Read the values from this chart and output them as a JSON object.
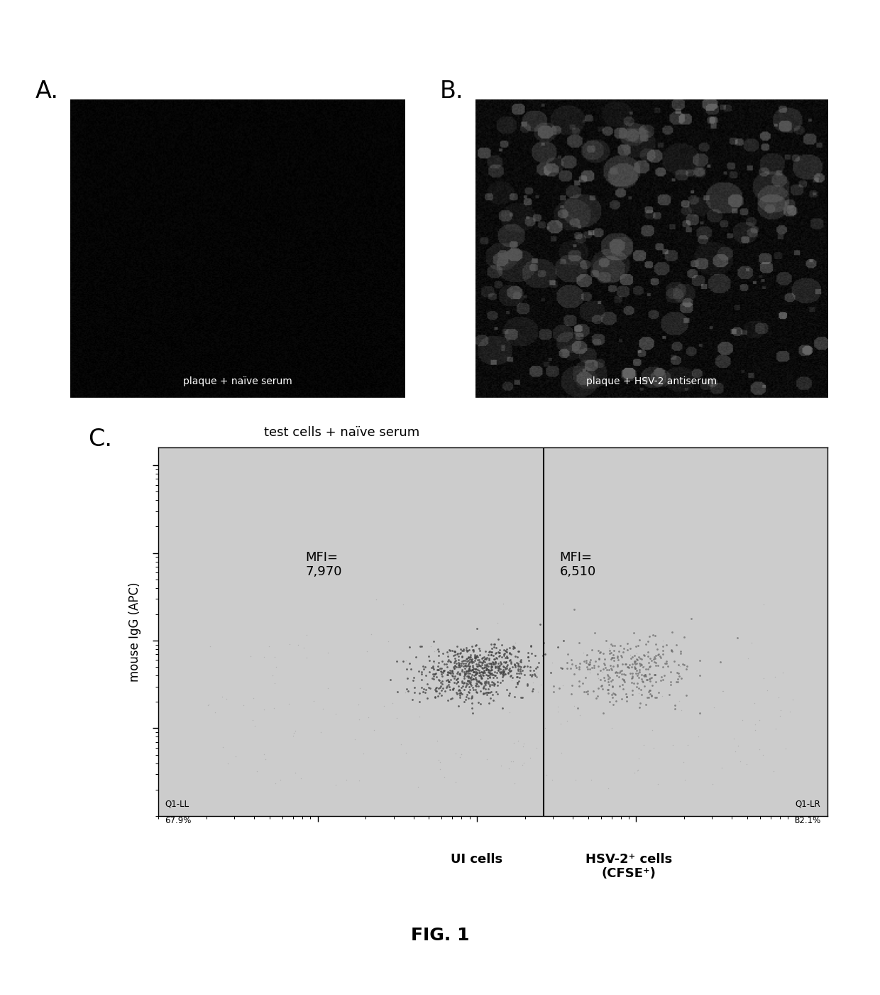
{
  "panel_A_label": "A.",
  "panel_B_label": "B.",
  "panel_C_label": "C.",
  "panel_A_caption": "plaque + naïve serum",
  "panel_B_caption": "plaque + HSV-2 antiserum",
  "panel_C_title": "test cells + naïve serum",
  "panel_C_ylabel": "mouse IgG (APC)",
  "panel_C_xlabel_left": "UI cells",
  "panel_C_xlabel_right": "HSV-2⁺ cells\n(CFSE⁺)",
  "mfi_left_label": "MFI=\n7,970",
  "mfi_right_label": "MFI=\n6,510",
  "q1_ll_label": "Q1-LL",
  "q1_ll_pct": "67.9%",
  "q1_lr_label": "Q1-LR",
  "q1_lr_pct": "32.1%",
  "fig_label": "FIG. 1",
  "background_color": "#ffffff"
}
